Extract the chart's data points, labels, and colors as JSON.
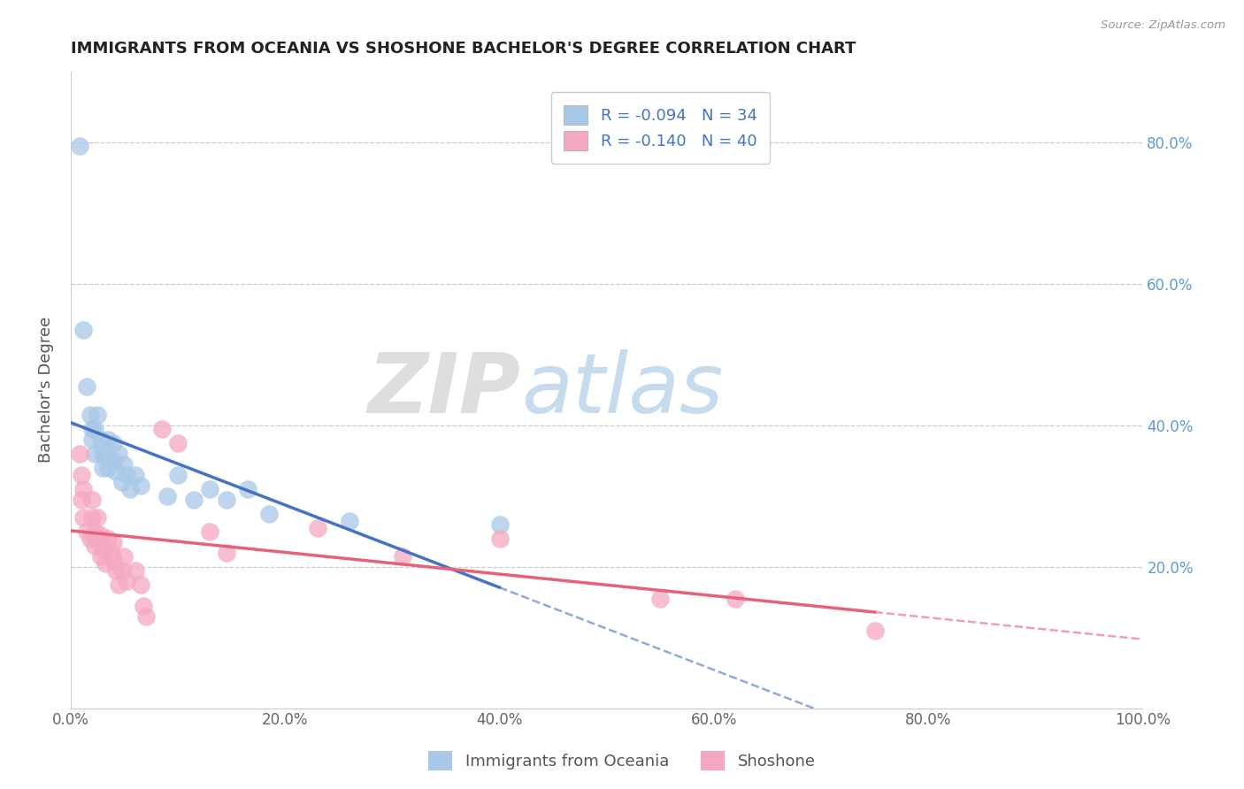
{
  "title": "IMMIGRANTS FROM OCEANIA VS SHOSHONE BACHELOR'S DEGREE CORRELATION CHART",
  "source": "Source: ZipAtlas.com",
  "ylabel": "Bachelor's Degree",
  "xlim": [
    0.0,
    1.0
  ],
  "ylim": [
    0.0,
    0.9
  ],
  "xtick_labels": [
    "0.0%",
    "20.0%",
    "40.0%",
    "60.0%",
    "80.0%",
    "100.0%"
  ],
  "xtick_values": [
    0.0,
    0.2,
    0.4,
    0.6,
    0.8,
    1.0
  ],
  "ytick_labels": [
    "20.0%",
    "40.0%",
    "60.0%",
    "80.0%"
  ],
  "ytick_values": [
    0.2,
    0.4,
    0.6,
    0.8
  ],
  "legend_R1": "-0.094",
  "legend_N1": "34",
  "legend_R2": "-0.140",
  "legend_N2": "40",
  "color_blue": "#A8C8E8",
  "color_pink": "#F4A8C0",
  "line_blue": "#4472C4",
  "line_pink": "#E8607A",
  "watermark_zip": "ZIP",
  "watermark_atlas": "atlas",
  "scatter_blue": [
    [
      0.008,
      0.795
    ],
    [
      0.012,
      0.535
    ],
    [
      0.015,
      0.455
    ],
    [
      0.018,
      0.415
    ],
    [
      0.02,
      0.395
    ],
    [
      0.02,
      0.38
    ],
    [
      0.022,
      0.395
    ],
    [
      0.022,
      0.36
    ],
    [
      0.025,
      0.415
    ],
    [
      0.028,
      0.38
    ],
    [
      0.03,
      0.36
    ],
    [
      0.03,
      0.34
    ],
    [
      0.032,
      0.355
    ],
    [
      0.035,
      0.38
    ],
    [
      0.035,
      0.34
    ],
    [
      0.04,
      0.375
    ],
    [
      0.04,
      0.35
    ],
    [
      0.042,
      0.335
    ],
    [
      0.045,
      0.36
    ],
    [
      0.048,
      0.32
    ],
    [
      0.05,
      0.345
    ],
    [
      0.052,
      0.33
    ],
    [
      0.055,
      0.31
    ],
    [
      0.06,
      0.33
    ],
    [
      0.065,
      0.315
    ],
    [
      0.09,
      0.3
    ],
    [
      0.1,
      0.33
    ],
    [
      0.115,
      0.295
    ],
    [
      0.13,
      0.31
    ],
    [
      0.145,
      0.295
    ],
    [
      0.165,
      0.31
    ],
    [
      0.185,
      0.275
    ],
    [
      0.26,
      0.265
    ],
    [
      0.4,
      0.26
    ]
  ],
  "scatter_pink": [
    [
      0.008,
      0.36
    ],
    [
      0.01,
      0.33
    ],
    [
      0.01,
      0.295
    ],
    [
      0.012,
      0.31
    ],
    [
      0.012,
      0.27
    ],
    [
      0.015,
      0.25
    ],
    [
      0.018,
      0.24
    ],
    [
      0.02,
      0.295
    ],
    [
      0.02,
      0.27
    ],
    [
      0.022,
      0.25
    ],
    [
      0.022,
      0.23
    ],
    [
      0.025,
      0.27
    ],
    [
      0.025,
      0.24
    ],
    [
      0.028,
      0.245
    ],
    [
      0.028,
      0.215
    ],
    [
      0.03,
      0.225
    ],
    [
      0.032,
      0.205
    ],
    [
      0.035,
      0.24
    ],
    [
      0.038,
      0.22
    ],
    [
      0.04,
      0.235
    ],
    [
      0.04,
      0.21
    ],
    [
      0.042,
      0.195
    ],
    [
      0.045,
      0.175
    ],
    [
      0.048,
      0.195
    ],
    [
      0.05,
      0.215
    ],
    [
      0.052,
      0.18
    ],
    [
      0.06,
      0.195
    ],
    [
      0.065,
      0.175
    ],
    [
      0.068,
      0.145
    ],
    [
      0.07,
      0.13
    ],
    [
      0.085,
      0.395
    ],
    [
      0.1,
      0.375
    ],
    [
      0.13,
      0.25
    ],
    [
      0.145,
      0.22
    ],
    [
      0.23,
      0.255
    ],
    [
      0.31,
      0.215
    ],
    [
      0.4,
      0.24
    ],
    [
      0.55,
      0.155
    ],
    [
      0.62,
      0.155
    ],
    [
      0.75,
      0.11
    ]
  ]
}
